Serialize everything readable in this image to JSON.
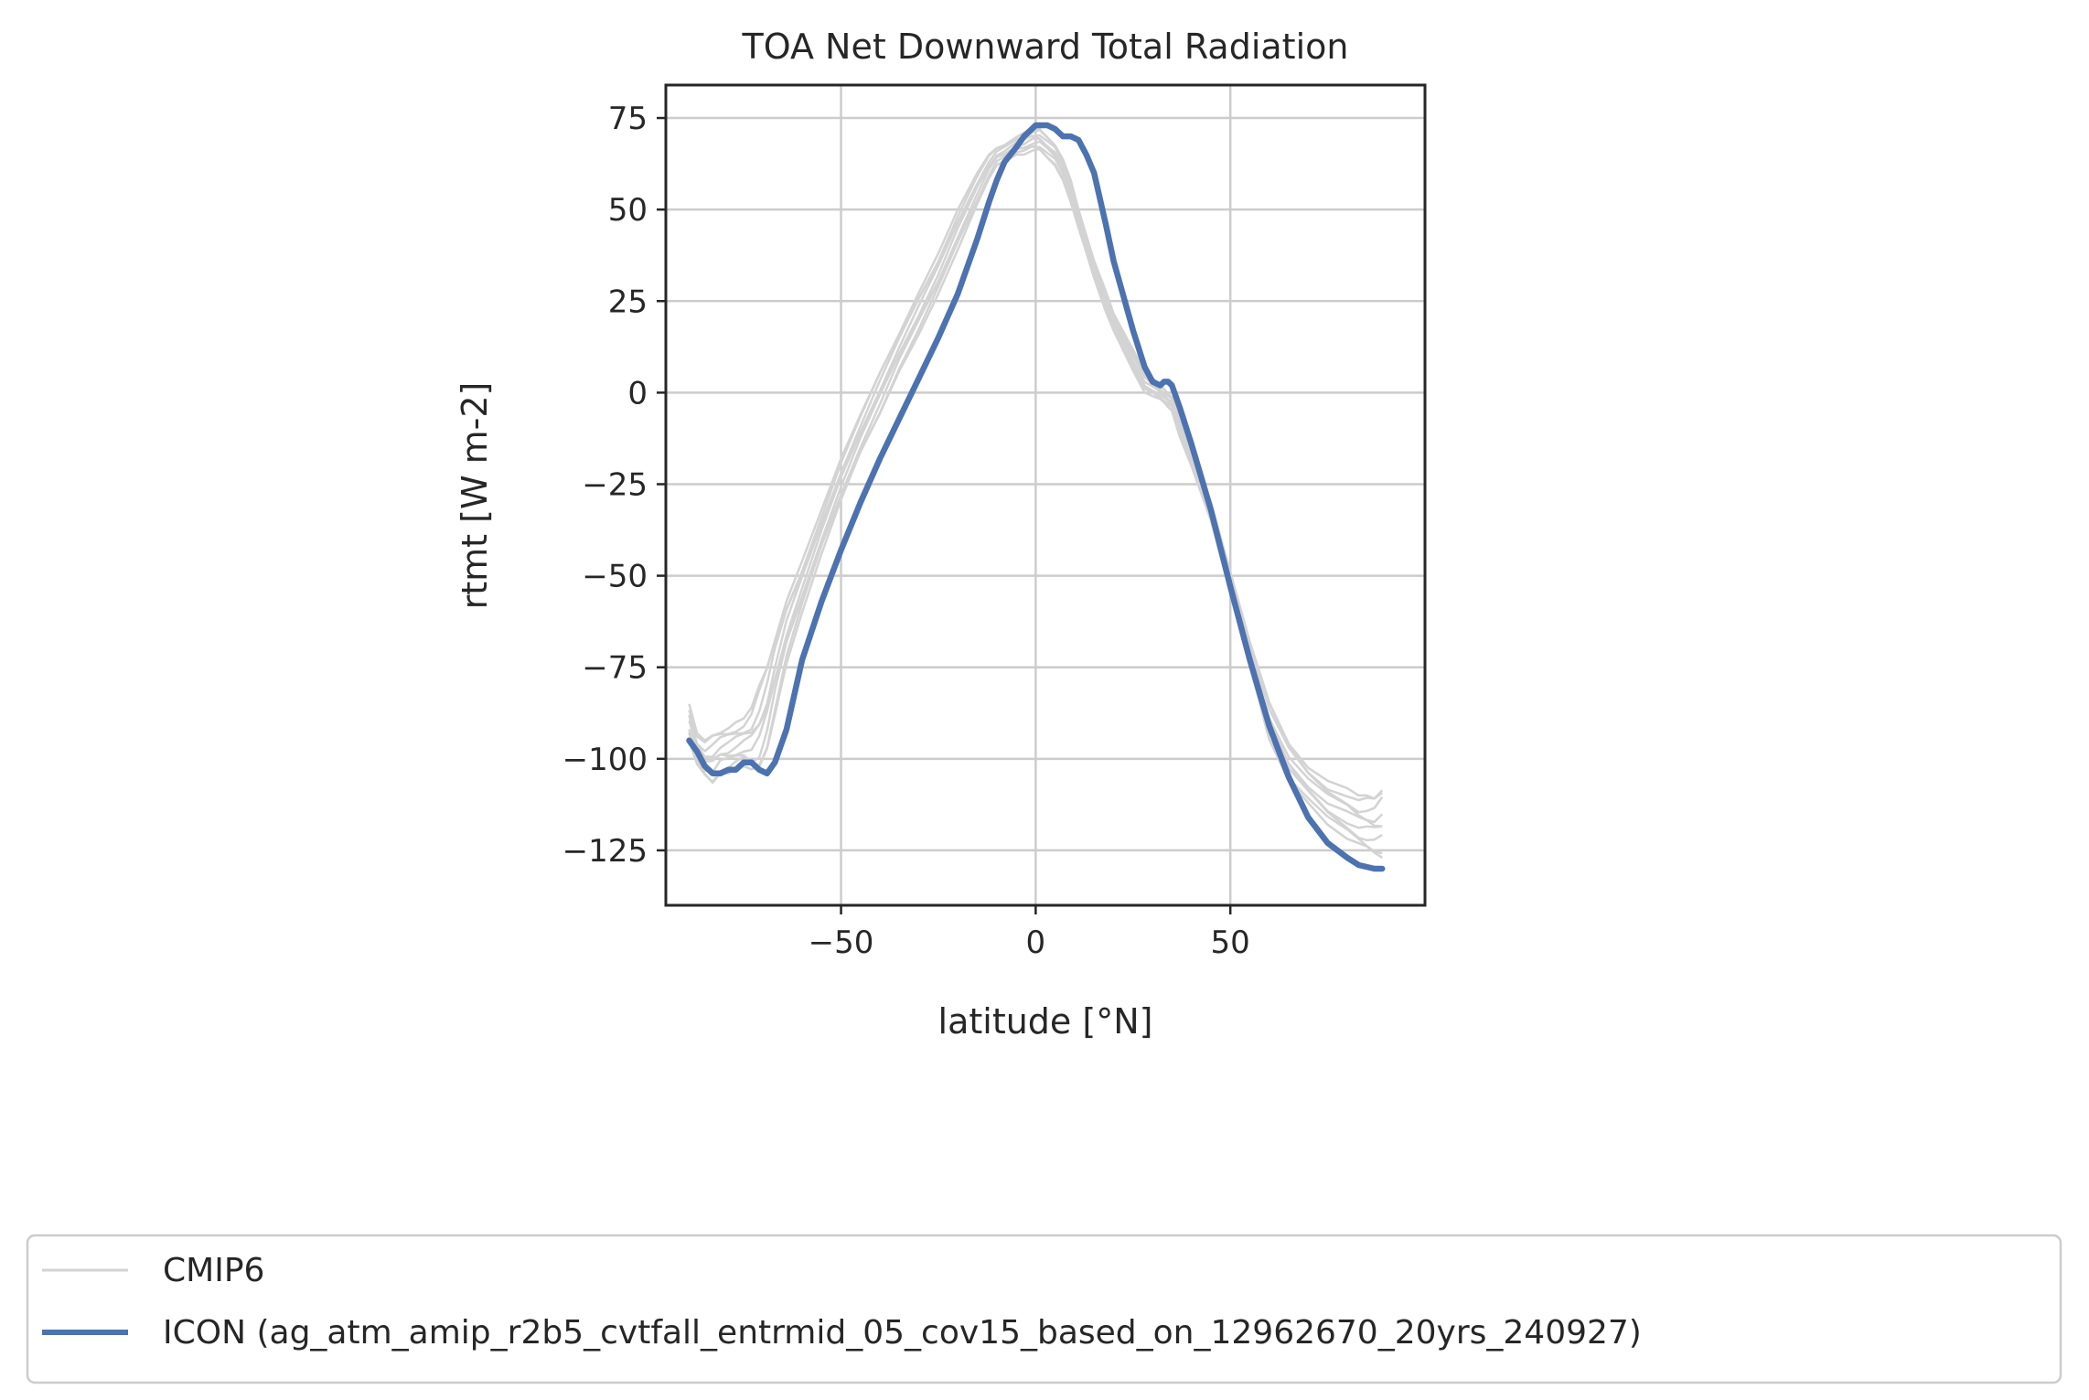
{
  "chart_data": {
    "type": "line",
    "title": "TOA Net Downward Total Radiation",
    "xlabel": "latitude [°N]",
    "ylabel": "rtmt [W m-2]",
    "xlim": [
      -95,
      100
    ],
    "ylim": [
      -140,
      84
    ],
    "xticks": [
      -50,
      0,
      50
    ],
    "xtick_labels": [
      "−50",
      "0",
      "50"
    ],
    "yticks": [
      75,
      50,
      25,
      0,
      -25,
      -50,
      -75,
      -100,
      -125
    ],
    "ytick_labels": [
      "75",
      "50",
      "25",
      "0",
      "−25",
      "−50",
      "−75",
      "−100",
      "−125"
    ],
    "grid": true,
    "legend_placement": "bottom, below plot",
    "x": [
      -89,
      -87,
      -85,
      -83,
      -81,
      -79,
      -77,
      -75,
      -73,
      -71,
      -69,
      -67,
      -64,
      -60,
      -55,
      -50,
      -45,
      -40,
      -35,
      -30,
      -25,
      -20,
      -15,
      -12,
      -10,
      -8,
      -5,
      -3,
      -1,
      0,
      1,
      3,
      5,
      7,
      9,
      11,
      13,
      15,
      18,
      20,
      25,
      28,
      30,
      32,
      33,
      34,
      35,
      37,
      40,
      45,
      50,
      55,
      60,
      65,
      70,
      75,
      80,
      83,
      85,
      87,
      89
    ],
    "series": [
      {
        "name": "CMIP6",
        "color": "#d3d3d3",
        "style": "thin ensemble lines",
        "band_low": [
          -95,
          -102,
          -105,
          -107,
          -104,
          -104,
          -103,
          -102,
          -104,
          -104,
          -98,
          -88,
          -74,
          -60,
          -44,
          -30,
          -17,
          -6,
          6,
          16,
          27,
          39,
          51,
          58,
          62,
          63,
          65,
          65,
          66,
          66,
          66,
          64,
          62,
          58,
          52,
          45,
          38,
          31,
          22,
          17,
          6,
          0,
          -1,
          -2,
          -3,
          -4,
          -5,
          -12,
          -20,
          -35,
          -55,
          -75,
          -95,
          -106,
          -112,
          -118,
          -122,
          -124,
          -125,
          -126,
          -127
        ],
        "band_high": [
          -85,
          -93,
          -95,
          -93,
          -92,
          -91,
          -90,
          -89,
          -86,
          -80,
          -74,
          -66,
          -56,
          -46,
          -32,
          -18,
          -6,
          6,
          17,
          28,
          38,
          50,
          60,
          65,
          67,
          68,
          70,
          71,
          72,
          72,
          72,
          70,
          68,
          64,
          58,
          50,
          43,
          36,
          28,
          22,
          12,
          6,
          4,
          2,
          1,
          0,
          -1,
          -7,
          -16,
          -30,
          -49,
          -68,
          -84,
          -95,
          -102,
          -106,
          -108,
          -110,
          -110,
          -110,
          -107
        ]
      },
      {
        "name": "ICON (ag_atm_amip_r2b5_cvtfall_entrmid_05_cov15_based_on_12962670_20yrs_240927)",
        "color": "#4c72b0",
        "style": "thick line",
        "values": [
          -95,
          -98,
          -102,
          -104,
          -104,
          -103,
          -103,
          -101,
          -101,
          -103,
          -104,
          -101,
          -92,
          -73,
          -57,
          -43,
          -30,
          -18,
          -7,
          4,
          15,
          27,
          42,
          52,
          58,
          63,
          67,
          70,
          72,
          73,
          73,
          73,
          72,
          70,
          70,
          69,
          65,
          60,
          46,
          36,
          17,
          7,
          3,
          2,
          3,
          3,
          2,
          -4,
          -14,
          -32,
          -53,
          -73,
          -91,
          -105,
          -116,
          -123,
          -127,
          -129,
          -129.5,
          -130,
          -130
        ]
      }
    ]
  }
}
